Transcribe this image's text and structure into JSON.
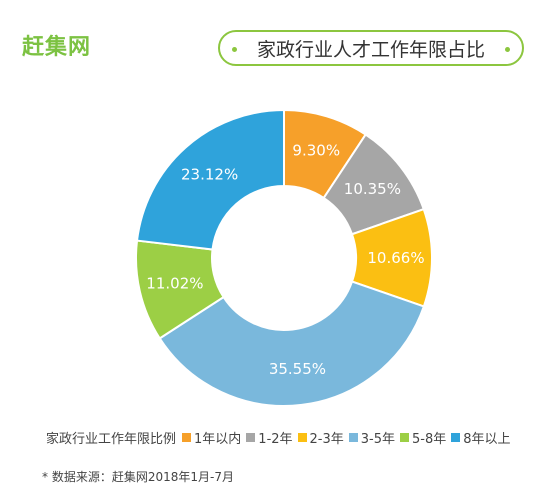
{
  "brand": "赶集网",
  "chart_data": {
    "type": "donut",
    "title": "家政行业人才工作年限占比",
    "legend_title": "家政行业工作年限比例",
    "legend_placement": "bottom",
    "categories": [
      "1年以内",
      "1-2年",
      "2-3年",
      "3-5年",
      "5-8年",
      "8年以上"
    ],
    "values": [
      9.3,
      10.35,
      10.66,
      35.55,
      11.02,
      23.12
    ],
    "labels": [
      "9.30%",
      "10.35%",
      "10.66%",
      "35.55%",
      "11.02%",
      "23.12%"
    ],
    "colors": [
      "#f6a02a",
      "#a6a6a6",
      "#fbbf12",
      "#7ab8dc",
      "#9ccf45",
      "#2fa3db"
    ]
  },
  "footnote": "* 数据来源：赶集网2018年1月-7月"
}
